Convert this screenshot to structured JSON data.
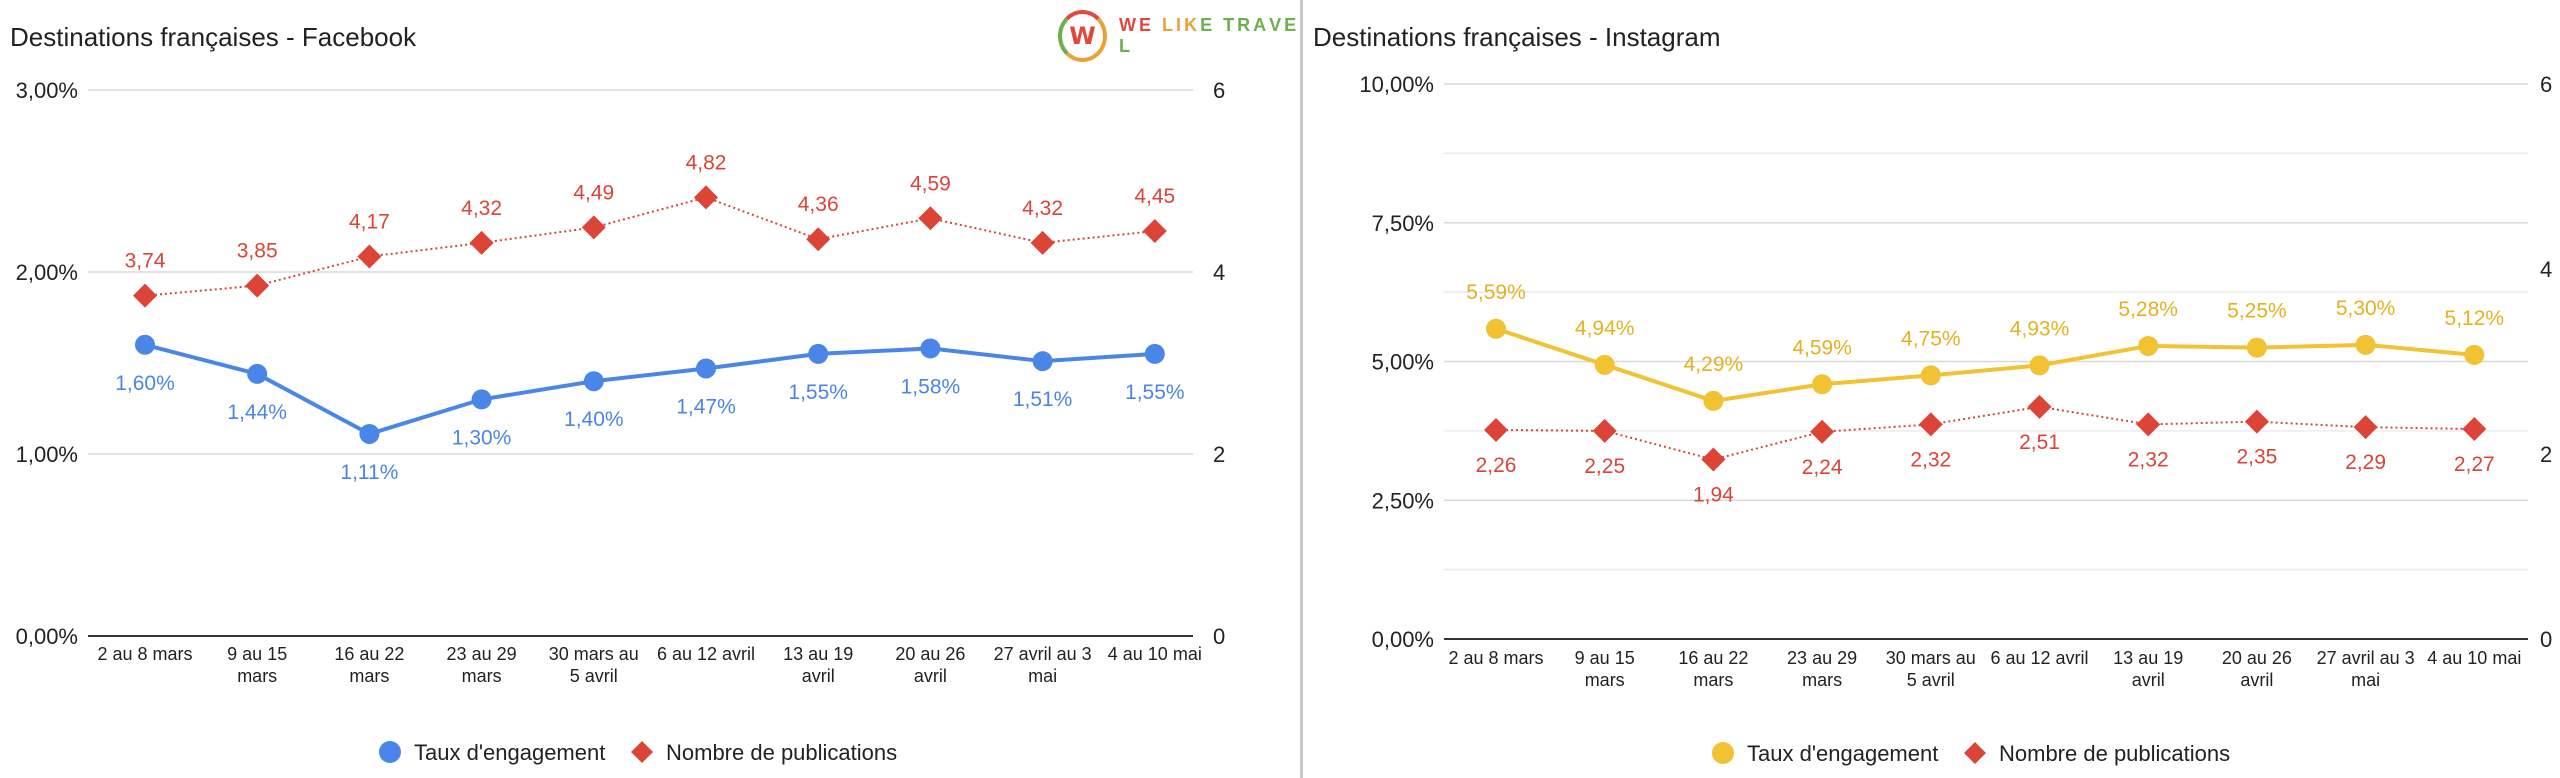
{
  "charts": [
    {
      "id": "fb",
      "title": "Destinations françaises - Facebook",
      "colors": {
        "engagement": "#4a86e8",
        "publications": "#db4437",
        "grid": "#d9d9d9",
        "axis": "#333333",
        "text": "#222222"
      },
      "legend": {
        "engagement": "Taux d'engagement",
        "publications": "Nombre de publications"
      },
      "chart_data": {
        "type": "line",
        "title": "Destinations françaises - Facebook",
        "categories": [
          "2 au 8 mars",
          "9 au 15 mars",
          "16 au 22 mars",
          "23 au 29 mars",
          "30 mars au 5 avril",
          "6 au 12 avril",
          "13 au 19 avril",
          "20 au 26 avril",
          "27 avril au 3 mai",
          "4 au 10 mai"
        ],
        "category_lines": [
          [
            "2 au 8 mars"
          ],
          [
            "9 au 15",
            "mars"
          ],
          [
            "16 au 22",
            "mars"
          ],
          [
            "23 au 29",
            "mars"
          ],
          [
            "30 mars au",
            "5 avril"
          ],
          [
            "6 au 12 avril"
          ],
          [
            "13 au 19",
            "avril"
          ],
          [
            "20 au 26",
            "avril"
          ],
          [
            "27 avril au 3",
            "mai"
          ],
          [
            "4 au 10 mai"
          ]
        ],
        "series": [
          {
            "name": "Taux d'engagement",
            "axis": "left",
            "values": [
              1.6,
              1.44,
              1.11,
              1.3,
              1.4,
              1.47,
              1.55,
              1.58,
              1.51,
              1.55
            ],
            "labels": [
              "1,60%",
              "1,44%",
              "1,11%",
              "1,30%",
              "1,40%",
              "1,47%",
              "1,55%",
              "1,58%",
              "1,51%",
              "1,55%"
            ],
            "marker": "circle",
            "line": "solid"
          },
          {
            "name": "Nombre de publications",
            "axis": "right",
            "values": [
              3.74,
              3.85,
              4.17,
              4.32,
              4.49,
              4.82,
              4.36,
              4.59,
              4.32,
              4.45
            ],
            "labels": [
              "3,74",
              "3,85",
              "4,17",
              "4,32",
              "4,49",
              "4,82",
              "4,36",
              "4,59",
              "4,32",
              "4,45"
            ],
            "marker": "diamond",
            "line": "dotted"
          }
        ],
        "left_axis": {
          "min": 0,
          "max": 3,
          "ticks": [
            0,
            1,
            2,
            3
          ],
          "tick_labels": [
            "0,00%",
            "1,00%",
            "2,00%",
            "3,00%"
          ]
        },
        "right_axis": {
          "min": 0,
          "max": 6,
          "ticks": [
            0,
            2,
            4,
            6
          ],
          "tick_labels": [
            "0",
            "2",
            "4",
            "6"
          ]
        },
        "minor_grid": false,
        "engagement_label_position": "below",
        "publications_label_position": "above",
        "legend_position": "bottom"
      }
    },
    {
      "id": "ig",
      "title": "Destinations françaises - Instagram",
      "colors": {
        "engagement": "#f1c232",
        "engagement_label": "#e6b020",
        "publications": "#db4437",
        "grid": "#d9d9d9",
        "axis": "#333333",
        "text": "#222222"
      },
      "legend": {
        "engagement": "Taux d'engagement",
        "publications": "Nombre de publications"
      },
      "chart_data": {
        "type": "line",
        "title": "Destinations françaises - Instagram",
        "categories": [
          "2 au 8 mars",
          "9 au 15 mars",
          "16 au 22 mars",
          "23 au 29 mars",
          "30 mars au 5 avril",
          "6 au 12 avril",
          "13 au 19 avril",
          "20 au 26 avril",
          "27 avril au 3 mai",
          "4 au 10 mai"
        ],
        "category_lines": [
          [
            "2 au 8 mars"
          ],
          [
            "9 au 15",
            "mars"
          ],
          [
            "16 au 22",
            "mars"
          ],
          [
            "23 au 29",
            "mars"
          ],
          [
            "30 mars au",
            "5 avril"
          ],
          [
            "6 au 12 avril"
          ],
          [
            "13 au 19",
            "avril"
          ],
          [
            "20 au 26",
            "avril"
          ],
          [
            "27 avril au 3",
            "mai"
          ],
          [
            "4 au 10 mai"
          ]
        ],
        "series": [
          {
            "name": "Taux d'engagement",
            "axis": "left",
            "values": [
              5.59,
              4.94,
              4.29,
              4.59,
              4.75,
              4.93,
              5.28,
              5.25,
              5.3,
              5.12
            ],
            "labels": [
              "5,59%",
              "4,94%",
              "4,29%",
              "4,59%",
              "4,75%",
              "4,93%",
              "5,28%",
              "5,25%",
              "5,30%",
              "5,12%"
            ],
            "marker": "circle",
            "line": "solid"
          },
          {
            "name": "Nombre de publications",
            "axis": "right",
            "values": [
              2.26,
              2.25,
              1.94,
              2.24,
              2.32,
              2.51,
              2.32,
              2.35,
              2.29,
              2.27
            ],
            "labels": [
              "2,26",
              "2,25",
              "1,94",
              "2,24",
              "2,32",
              "2,51",
              "2,32",
              "2,35",
              "2,29",
              "2,27"
            ],
            "marker": "diamond",
            "line": "dotted"
          }
        ],
        "left_axis": {
          "min": 0,
          "max": 10,
          "ticks": [
            0,
            2.5,
            5,
            7.5,
            10
          ],
          "tick_labels": [
            "0,00%",
            "2,50%",
            "5,00%",
            "7,50%",
            "10,00%"
          ]
        },
        "right_axis": {
          "min": 0,
          "max": 6,
          "ticks": [
            0,
            2,
            4,
            6
          ],
          "tick_labels": [
            "0",
            "2",
            "4",
            "6"
          ]
        },
        "minor_grid": true,
        "engagement_label_position": "above",
        "publications_label_position": "below",
        "legend_position": "bottom"
      }
    }
  ],
  "logo": {
    "text": "WE LIKE TRAVEL",
    "mark": "W",
    "letter_colors": [
      "#e0483e",
      "#e0483e",
      "#e8a23a",
      "#e8a23a",
      "#e8a23a",
      "#e8a23a",
      "#6ab04c",
      "#6ab04c",
      "#6ab04c",
      "#6ab04c",
      "#6ab04c",
      "#6ab04c",
      "#6ab04c",
      "#6ab04c"
    ]
  }
}
